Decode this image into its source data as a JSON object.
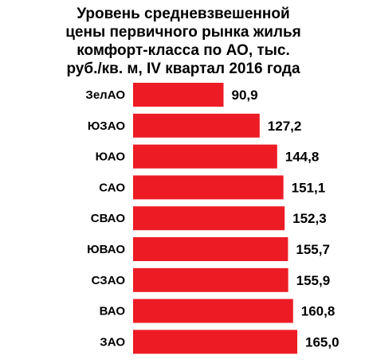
{
  "chart_data": {
    "type": "bar",
    "orientation": "horizontal",
    "title_lines": [
      "Уровень средневзвешенной",
      "цены первичного рынка жилья",
      "комфорт-класса  по АО, тыс.",
      "руб./кв. м, IV квартал 2016 года"
    ],
    "categories": [
      "ЗелАО",
      "ЮЗАО",
      "ЮАО",
      "САО",
      "СВАО",
      "ЮВАО",
      "СЗАО",
      "ВАО",
      "ЗАО"
    ],
    "values": [
      90.9,
      127.2,
      144.8,
      151.1,
      152.3,
      155.7,
      155.9,
      160.8,
      165.0
    ],
    "value_labels": [
      "90,9",
      "127,2",
      "144,8",
      "151,1",
      "152,3",
      "155,7",
      "155,9",
      "160,8",
      "165,0"
    ],
    "xlim": [
      0,
      165.0
    ],
    "bar_color": "#ed1c24",
    "grid": false,
    "legend": "none"
  }
}
